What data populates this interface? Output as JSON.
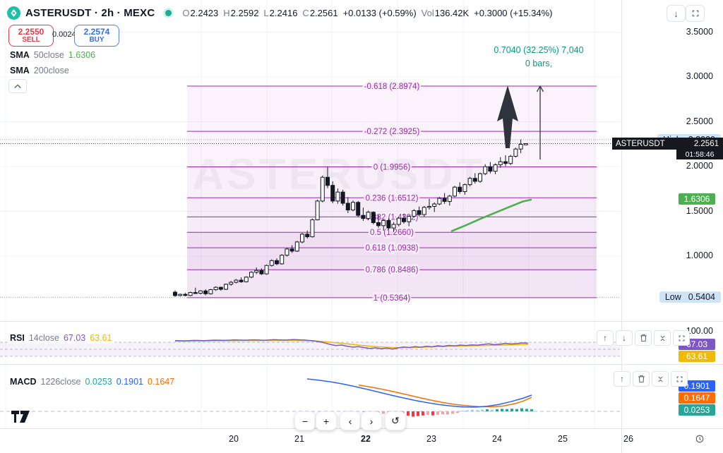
{
  "colors": {
    "fib": "#9c27b0",
    "candle_down": "#131722",
    "candle_up": "#ffffff",
    "sma50": "#4caf50",
    "sell": "#f23645",
    "buy": "#316fe8",
    "rsi": "#7e57c2",
    "rsi_ma": "#f0b90b",
    "macd": "#2962ff",
    "signal": "#ff6d00",
    "hist_pos": "#26a69a",
    "hist_neg": "#f7a1a5",
    "annotation": "#089981",
    "hl_badge_bg": "#cfe3f7",
    "last_badge_bg": "#16181d",
    "sma_badge_bg": "#4caf50"
  },
  "watermark": "ASTERUSDT",
  "header": {
    "symbol": "ASTERUSDT · 2h · MEXC",
    "ohlc": [
      {
        "l": "O",
        "v": "2.2423"
      },
      {
        "l": "H",
        "v": "2.2592"
      },
      {
        "l": "L",
        "v": "2.2416"
      },
      {
        "l": "C",
        "v": "2.2561"
      }
    ],
    "change": "+0.0133 (+0.59%)",
    "vol_label": "Vol",
    "vol_value": "136.42K",
    "vol_change": "+0.3000 (+15.34%)"
  },
  "trade": {
    "sell_price": "2.2550",
    "sell_label": "SELL",
    "spread": "0.0024",
    "buy_price": "2.2574",
    "buy_label": "BUY"
  },
  "legends": {
    "sma50": {
      "name": "SMA",
      "params": "50close",
      "value": "1.6306"
    },
    "sma200": {
      "name": "SMA",
      "params": "200close"
    },
    "rsi": {
      "name": "RSI",
      "params": "14close",
      "value": "67.03",
      "ma_value": "63.61"
    },
    "macd": {
      "name": "MACD",
      "params": "1226close",
      "hist": "0.0253",
      "macd": "0.1901",
      "signal": "0.1647"
    }
  },
  "annotation": {
    "line1": "0.7040 (32.25%) 7,040",
    "line2": "0 bars,"
  },
  "axis": {
    "high_label": "High",
    "high_value": "2.3000",
    "low_label": "Low",
    "low_value": "0.5404",
    "last_symbol": "ASTERUSDT",
    "last_price": "2.2561",
    "countdown": "01:58:46",
    "sma_badge": "1.6306",
    "rsi_top": "100.00",
    "rsi_badge": "67.03",
    "rsi_ma_badge": "63.61",
    "macd_badge": "0.1901",
    "signal_badge": "0.1647",
    "hist_badge": "0.0253"
  },
  "chart_data": {
    "type": "candlestick",
    "symbol": "ASTERUSDT",
    "interval": "2h",
    "exchange": "MEXC",
    "ohlc_last": {
      "open": 2.2423,
      "high": 2.2592,
      "low": 2.2416,
      "close": 2.2561
    },
    "volume": "136.42K",
    "price_axis_ticks": [
      "3.5000",
      "3.0000",
      "2.5000",
      "2.0000",
      "1.5000",
      "1.0000"
    ],
    "range_high": 2.3,
    "range_low": 0.5404,
    "last_price": 2.2561,
    "fib_levels": [
      {
        "label": "-0.618 (2.8974)",
        "price": 2.8974
      },
      {
        "label": "-0.272 (2.3925)",
        "price": 2.3925
      },
      {
        "label": "0 (1.9956)",
        "price": 1.9956
      },
      {
        "label": "0.236 (1.6512)",
        "price": 1.6512
      },
      {
        "label": "0.382 (1.4382)",
        "price": 1.4382
      },
      {
        "label": "0.5 (1.2660)",
        "price": 1.266
      },
      {
        "label": "0.618 (1.0938)",
        "price": 1.0938
      },
      {
        "label": "0.786 (0.8486)",
        "price": 0.8486
      },
      {
        "label": "1 (0.5364)",
        "price": 0.5364
      }
    ],
    "measure": {
      "text": "0.7040 (32.25%) 7,040",
      "bars": "0 bars,"
    },
    "candles": [
      [
        0.598,
        0.618,
        0.545,
        0.56
      ],
      [
        0.56,
        0.582,
        0.55,
        0.574
      ],
      [
        0.574,
        0.59,
        0.552,
        0.561
      ],
      [
        0.561,
        0.602,
        0.554,
        0.594
      ],
      [
        0.594,
        0.648,
        0.58,
        0.586
      ],
      [
        0.586,
        0.62,
        0.574,
        0.612
      ],
      [
        0.612,
        0.63,
        0.563,
        0.58
      ],
      [
        0.58,
        0.634,
        0.571,
        0.626
      ],
      [
        0.626,
        0.664,
        0.612,
        0.652
      ],
      [
        0.652,
        0.66,
        0.614,
        0.63
      ],
      [
        0.63,
        0.694,
        0.622,
        0.686
      ],
      [
        0.686,
        0.724,
        0.67,
        0.708
      ],
      [
        0.708,
        0.744,
        0.696,
        0.732
      ],
      [
        0.732,
        0.764,
        0.702,
        0.714
      ],
      [
        0.714,
        0.774,
        0.706,
        0.766
      ],
      [
        0.766,
        0.832,
        0.754,
        0.82
      ],
      [
        0.82,
        0.874,
        0.8,
        0.84
      ],
      [
        0.84,
        0.864,
        0.79,
        0.802
      ],
      [
        0.802,
        0.904,
        0.794,
        0.896
      ],
      [
        0.896,
        0.964,
        0.884,
        0.95
      ],
      [
        0.95,
        0.974,
        0.9,
        0.914
      ],
      [
        0.914,
        1.022,
        0.906,
        1.01
      ],
      [
        1.01,
        1.094,
        0.996,
        1.08
      ],
      [
        1.08,
        1.122,
        1.036,
        1.056
      ],
      [
        1.056,
        1.17,
        1.048,
        1.158
      ],
      [
        1.158,
        1.258,
        1.144,
        1.245
      ],
      [
        1.245,
        1.285,
        1.196,
        1.216
      ],
      [
        1.216,
        1.42,
        1.208,
        1.405
      ],
      [
        1.405,
        1.63,
        1.398,
        1.615
      ],
      [
        1.615,
        1.9,
        1.6,
        1.88
      ],
      [
        1.88,
        1.996,
        1.76,
        1.79
      ],
      [
        1.79,
        1.835,
        1.59,
        1.615
      ],
      [
        1.615,
        1.755,
        1.585,
        1.715
      ],
      [
        1.715,
        1.74,
        1.565,
        1.59
      ],
      [
        1.59,
        1.658,
        1.48,
        1.515
      ],
      [
        1.515,
        1.62,
        1.502,
        1.6
      ],
      [
        1.6,
        1.615,
        1.435,
        1.455
      ],
      [
        1.455,
        1.542,
        1.394,
        1.42
      ],
      [
        1.42,
        1.508,
        1.4,
        1.49
      ],
      [
        1.49,
        1.5,
        1.354,
        1.374
      ],
      [
        1.374,
        1.46,
        1.316,
        1.34
      ],
      [
        1.34,
        1.414,
        1.284,
        1.398
      ],
      [
        1.398,
        1.42,
        1.298,
        1.314
      ],
      [
        1.314,
        1.38,
        1.268,
        1.354
      ],
      [
        1.354,
        1.44,
        1.332,
        1.424
      ],
      [
        1.424,
        1.47,
        1.362,
        1.384
      ],
      [
        1.384,
        1.456,
        1.334,
        1.444
      ],
      [
        1.444,
        1.524,
        1.43,
        1.508
      ],
      [
        1.508,
        1.554,
        1.444,
        1.464
      ],
      [
        1.464,
        1.56,
        1.44,
        1.545
      ],
      [
        1.545,
        1.64,
        1.52,
        1.555
      ],
      [
        1.555,
        1.6,
        1.492,
        1.582
      ],
      [
        1.582,
        1.66,
        1.57,
        1.645
      ],
      [
        1.645,
        1.704,
        1.584,
        1.61
      ],
      [
        1.61,
        1.684,
        1.564,
        1.67
      ],
      [
        1.67,
        1.784,
        1.658,
        1.77
      ],
      [
        1.77,
        1.824,
        1.696,
        1.72
      ],
      [
        1.72,
        1.81,
        1.684,
        1.798
      ],
      [
        1.798,
        1.884,
        1.78,
        1.868
      ],
      [
        1.868,
        1.926,
        1.81,
        1.835
      ],
      [
        1.835,
        1.934,
        1.818,
        1.92
      ],
      [
        1.92,
        2.026,
        1.904,
        1.998
      ],
      [
        1.998,
        2.05,
        1.924,
        1.948
      ],
      [
        1.948,
        2.036,
        1.914,
        2.02
      ],
      [
        2.02,
        2.104,
        1.986,
        2.054
      ],
      [
        2.054,
        2.126,
        2.004,
        2.034
      ],
      [
        2.034,
        2.13,
        2.016,
        2.114
      ],
      [
        2.114,
        2.21,
        2.1,
        2.195
      ],
      [
        2.195,
        2.302,
        2.15,
        2.248
      ],
      [
        2.2423,
        2.2592,
        2.2416,
        2.2561
      ]
    ],
    "sma50_points": [
      [
        640,
        1.28
      ],
      [
        660,
        1.345
      ],
      [
        680,
        1.415
      ],
      [
        700,
        1.48
      ],
      [
        720,
        1.545
      ],
      [
        740,
        1.608
      ],
      [
        752,
        1.6306
      ]
    ],
    "rsi": {
      "line": [
        [
          248,
          74.5
        ],
        [
          262,
          73.8
        ],
        [
          276,
          75.2
        ],
        [
          290,
          74.6
        ],
        [
          304,
          76.0
        ],
        [
          318,
          75.2
        ],
        [
          332,
          76.5
        ],
        [
          346,
          75.8
        ],
        [
          360,
          76.8
        ],
        [
          374,
          75.5
        ],
        [
          388,
          77.2
        ],
        [
          402,
          76.0
        ],
        [
          416,
          77.5
        ],
        [
          430,
          76.2
        ],
        [
          444,
          74.0
        ],
        [
          452,
          71.5
        ],
        [
          460,
          68.0
        ],
        [
          468,
          63.5
        ],
        [
          476,
          60.5
        ],
        [
          484,
          62.0
        ],
        [
          492,
          58.5
        ],
        [
          500,
          56.0
        ],
        [
          508,
          57.5
        ],
        [
          516,
          54.5
        ],
        [
          524,
          52.5
        ],
        [
          532,
          54.0
        ],
        [
          540,
          51.5
        ],
        [
          548,
          53.5
        ],
        [
          556,
          50.5
        ],
        [
          564,
          54.0
        ],
        [
          572,
          56.5
        ],
        [
          580,
          55.0
        ],
        [
          588,
          57.5
        ],
        [
          596,
          56.0
        ],
        [
          604,
          58.5
        ],
        [
          612,
          57.0
        ],
        [
          620,
          60.0
        ],
        [
          628,
          58.5
        ],
        [
          636,
          61.0
        ],
        [
          644,
          59.5
        ],
        [
          652,
          62.0
        ],
        [
          660,
          60.5
        ],
        [
          668,
          62.5
        ],
        [
          676,
          61.5
        ],
        [
          684,
          63.5
        ],
        [
          692,
          65.5
        ],
        [
          700,
          63.0
        ],
        [
          708,
          64.5
        ],
        [
          716,
          66.5
        ],
        [
          724,
          65.0
        ],
        [
          732,
          66.0
        ],
        [
          740,
          68.0
        ],
        [
          748,
          67.0
        ]
      ],
      "ma": [
        [
          248,
          73.5
        ],
        [
          280,
          74.0
        ],
        [
          312,
          74.5
        ],
        [
          344,
          75.0
        ],
        [
          376,
          75.5
        ],
        [
          408,
          75.8
        ],
        [
          440,
          74.5
        ],
        [
          464,
          71.0
        ],
        [
          488,
          66.0
        ],
        [
          512,
          61.0
        ],
        [
          536,
          57.0
        ],
        [
          560,
          54.5
        ],
        [
          584,
          55.0
        ],
        [
          608,
          56.5
        ],
        [
          632,
          58.0
        ],
        [
          656,
          59.5
        ],
        [
          680,
          60.5
        ],
        [
          704,
          61.5
        ],
        [
          728,
          62.5
        ],
        [
          748,
          63.6
        ]
      ],
      "levels": [
        70,
        50,
        30
      ],
      "top_label": "100.00"
    },
    "macd": {
      "line": [
        [
          435,
          0.38
        ],
        [
          452,
          0.365
        ],
        [
          469,
          0.345
        ],
        [
          486,
          0.32
        ],
        [
          503,
          0.29
        ],
        [
          520,
          0.258
        ],
        [
          537,
          0.224
        ],
        [
          554,
          0.19
        ],
        [
          571,
          0.158
        ],
        [
          588,
          0.128
        ],
        [
          605,
          0.102
        ],
        [
          622,
          0.08
        ],
        [
          639,
          0.063
        ],
        [
          656,
          0.052
        ],
        [
          673,
          0.05
        ],
        [
          690,
          0.06
        ],
        [
          707,
          0.082
        ],
        [
          724,
          0.115
        ],
        [
          741,
          0.155
        ],
        [
          753,
          0.1901
        ]
      ],
      "signal": [
        [
          508,
          0.308
        ],
        [
          525,
          0.285
        ],
        [
          542,
          0.258
        ],
        [
          559,
          0.228
        ],
        [
          576,
          0.196
        ],
        [
          593,
          0.163
        ],
        [
          610,
          0.132
        ],
        [
          627,
          0.104
        ],
        [
          644,
          0.082
        ],
        [
          661,
          0.066
        ],
        [
          678,
          0.056
        ],
        [
          695,
          0.054
        ],
        [
          712,
          0.062
        ],
        [
          729,
          0.09
        ],
        [
          741,
          0.12
        ],
        [
          753,
          0.1647
        ]
      ],
      "hist": [
        [
          515,
          -0.008
        ],
        [
          522,
          -0.014
        ],
        [
          529,
          -0.018
        ],
        [
          536,
          -0.022
        ],
        [
          543,
          -0.028
        ],
        [
          550,
          -0.034
        ],
        [
          557,
          -0.04
        ],
        [
          564,
          -0.046
        ],
        [
          571,
          -0.042
        ],
        [
          578,
          -0.05
        ],
        [
          585,
          -0.062
        ],
        [
          592,
          -0.055
        ],
        [
          599,
          -0.048
        ],
        [
          606,
          -0.042
        ],
        [
          613,
          -0.047
        ],
        [
          620,
          -0.04
        ],
        [
          627,
          -0.034
        ],
        [
          634,
          -0.037
        ],
        [
          641,
          -0.028
        ],
        [
          648,
          -0.018
        ],
        [
          655,
          0.008
        ],
        [
          662,
          0.012
        ],
        [
          669,
          0.018
        ],
        [
          676,
          0.014
        ],
        [
          683,
          0.02
        ],
        [
          690,
          0.024
        ],
        [
          697,
          0.019
        ],
        [
          704,
          0.026
        ],
        [
          711,
          0.03
        ],
        [
          718,
          0.027
        ],
        [
          725,
          0.032
        ],
        [
          732,
          0.028
        ],
        [
          739,
          0.036
        ],
        [
          746,
          0.03
        ],
        [
          753,
          0.026
        ]
      ]
    },
    "time_axis": {
      "labels": [
        "20",
        "21",
        "22",
        "23",
        "24",
        "25",
        "26"
      ],
      "x": [
        331,
        424,
        518,
        611,
        704,
        797,
        890
      ],
      "bold_label": "22"
    }
  }
}
